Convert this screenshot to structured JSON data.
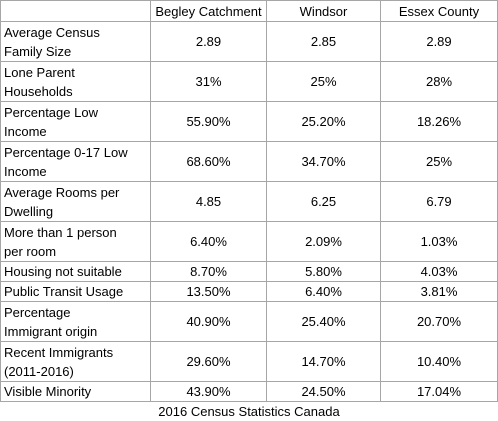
{
  "table": {
    "columns": [
      "Begley Catchment",
      "Windsor",
      "Essex County"
    ],
    "rows": [
      {
        "label": [
          "Average Census",
          "Family Size"
        ],
        "values": [
          "2.89",
          "2.85",
          "2.89"
        ]
      },
      {
        "label": [
          "Lone Parent",
          "Households"
        ],
        "values": [
          "31%",
          "25%",
          "28%"
        ]
      },
      {
        "label": [
          "Percentage Low",
          "Income"
        ],
        "values": [
          "55.90%",
          "25.20%",
          "18.26%"
        ]
      },
      {
        "label": [
          "Percentage 0-17 Low",
          "Income"
        ],
        "values": [
          "68.60%",
          "34.70%",
          "25%"
        ]
      },
      {
        "label": [
          "Average Rooms per",
          "Dwelling"
        ],
        "values": [
          "4.85",
          "6.25",
          "6.79"
        ]
      },
      {
        "label": [
          "More than 1 person",
          "per room"
        ],
        "values": [
          "6.40%",
          "2.09%",
          "1.03%"
        ]
      },
      {
        "label": [
          "Housing not suitable"
        ],
        "values": [
          "8.70%",
          "5.80%",
          "4.03%"
        ]
      },
      {
        "label": [
          "Public Transit Usage"
        ],
        "values": [
          "13.50%",
          "6.40%",
          "3.81%"
        ]
      },
      {
        "label": [
          "Percentage",
          "Immigrant origin"
        ],
        "values": [
          "40.90%",
          "25.40%",
          "20.70%"
        ]
      },
      {
        "label": [
          "Recent Immigrants",
          "(2011-2016)"
        ],
        "values": [
          "29.60%",
          "14.70%",
          "10.40%"
        ]
      },
      {
        "label": [
          "Visible Minority"
        ],
        "values": [
          "43.90%",
          "24.50%",
          "17.04%"
        ]
      }
    ],
    "footer": "2016 Census Statistics Canada"
  }
}
